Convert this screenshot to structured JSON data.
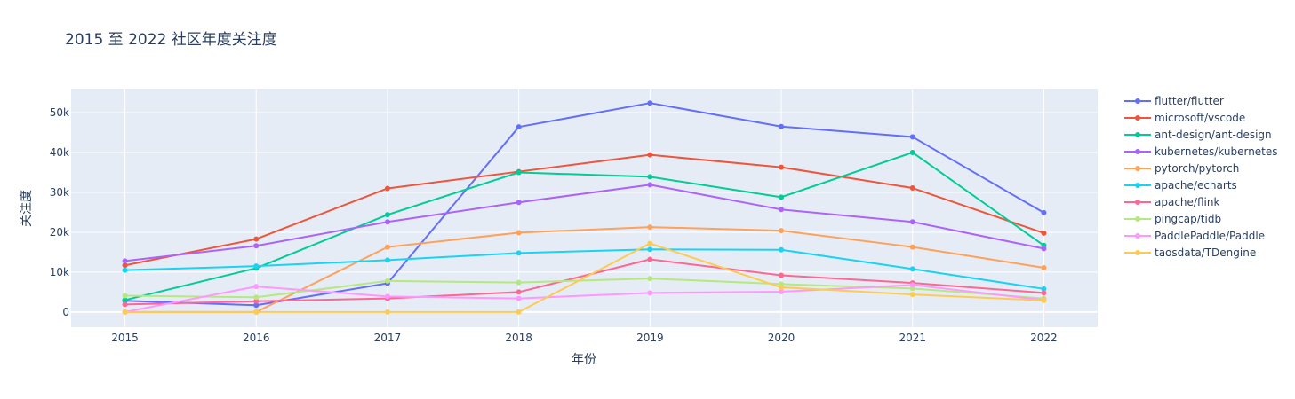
{
  "chart_data": {
    "type": "line",
    "title": "2015 至 2022 社区年度关注度",
    "xlabel": "年份",
    "ylabel": "关注度",
    "x": [
      2015,
      2016,
      2017,
      2018,
      2019,
      2020,
      2021,
      2022
    ],
    "x_tick_labels": [
      "2015",
      "2016",
      "2017",
      "2018",
      "2019",
      "2020",
      "2021",
      "2022"
    ],
    "xlim": [
      2014.59,
      2022.41
    ],
    "y_ticks": [
      0,
      10000,
      20000,
      30000,
      40000,
      50000
    ],
    "y_tick_labels": [
      "0",
      "10k",
      "20k",
      "30k",
      "40k",
      "50k"
    ],
    "ylim": [
      -3800,
      56000
    ],
    "grid": true,
    "legend_placement": "right",
    "plot_background": "#e5ecf6",
    "series": [
      {
        "name": "flutter/flutter",
        "color": "#636efa",
        "values": [
          2800,
          1700,
          7200,
          46400,
          52400,
          46500,
          43900,
          24900
        ]
      },
      {
        "name": "microsoft/vscode",
        "color": "#ef553b",
        "values": [
          11700,
          18300,
          31000,
          35200,
          39400,
          36300,
          31100,
          19800
        ]
      },
      {
        "name": "ant-design/ant-design",
        "color": "#00cc96",
        "values": [
          3000,
          11000,
          24400,
          35000,
          33900,
          28800,
          40000,
          16700
        ]
      },
      {
        "name": "kubernetes/kubernetes",
        "color": "#ab63fa",
        "values": [
          12800,
          16600,
          22600,
          27500,
          31900,
          25700,
          22600,
          15900
        ]
      },
      {
        "name": "pytorch/pytorch",
        "color": "#ffa15a",
        "values": [
          0,
          0,
          16300,
          19900,
          21300,
          20400,
          16300,
          11100
        ]
      },
      {
        "name": "apache/echarts",
        "color": "#19d3f3",
        "values": [
          10500,
          11500,
          13000,
          14800,
          15700,
          15600,
          10800,
          5800
        ]
      },
      {
        "name": "apache/flink",
        "color": "#ff6692",
        "values": [
          1900,
          2700,
          3400,
          5000,
          13200,
          9200,
          7300,
          4800
        ]
      },
      {
        "name": "pingcap/tidb",
        "color": "#b6e880",
        "values": [
          4100,
          3700,
          7800,
          7400,
          8400,
          7000,
          5900,
          3400
        ]
      },
      {
        "name": "PaddlePaddle/Paddle",
        "color": "#ff97ff",
        "values": [
          0,
          6400,
          3900,
          3400,
          4800,
          5100,
          6800,
          3000
        ]
      },
      {
        "name": "taosdata/TDengine",
        "color": "#fecb52",
        "values": [
          0,
          0,
          0,
          0,
          17200,
          6200,
          4400,
          2900
        ]
      }
    ]
  }
}
